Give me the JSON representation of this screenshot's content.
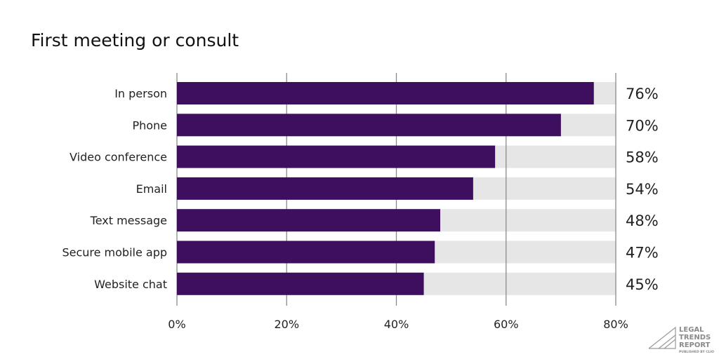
{
  "chart_data": {
    "type": "bar",
    "orientation": "horizontal",
    "title": "First meeting or consult",
    "categories": [
      "In person",
      "Phone",
      "Video conference",
      "Email",
      "Text message",
      "Secure mobile app",
      "Website chat"
    ],
    "values": [
      76,
      70,
      58,
      54,
      48,
      47,
      45
    ],
    "value_labels": [
      "76%",
      "70%",
      "58%",
      "54%",
      "48%",
      "47%",
      "45%"
    ],
    "xlim": [
      0,
      80
    ],
    "xticks": [
      0,
      20,
      40,
      60,
      80
    ],
    "xtick_labels": [
      "0%",
      "20%",
      "40%",
      "60%",
      "80%"
    ],
    "grid": true,
    "colors": {
      "bar": "#3e0f5f",
      "track": "#e6e6e6",
      "grid": "#8a8a8a"
    }
  },
  "logo": {
    "lines": [
      "LEGAL",
      "TRENDS",
      "REPORT"
    ],
    "sub": "PUBLISHED BY CLIO"
  }
}
